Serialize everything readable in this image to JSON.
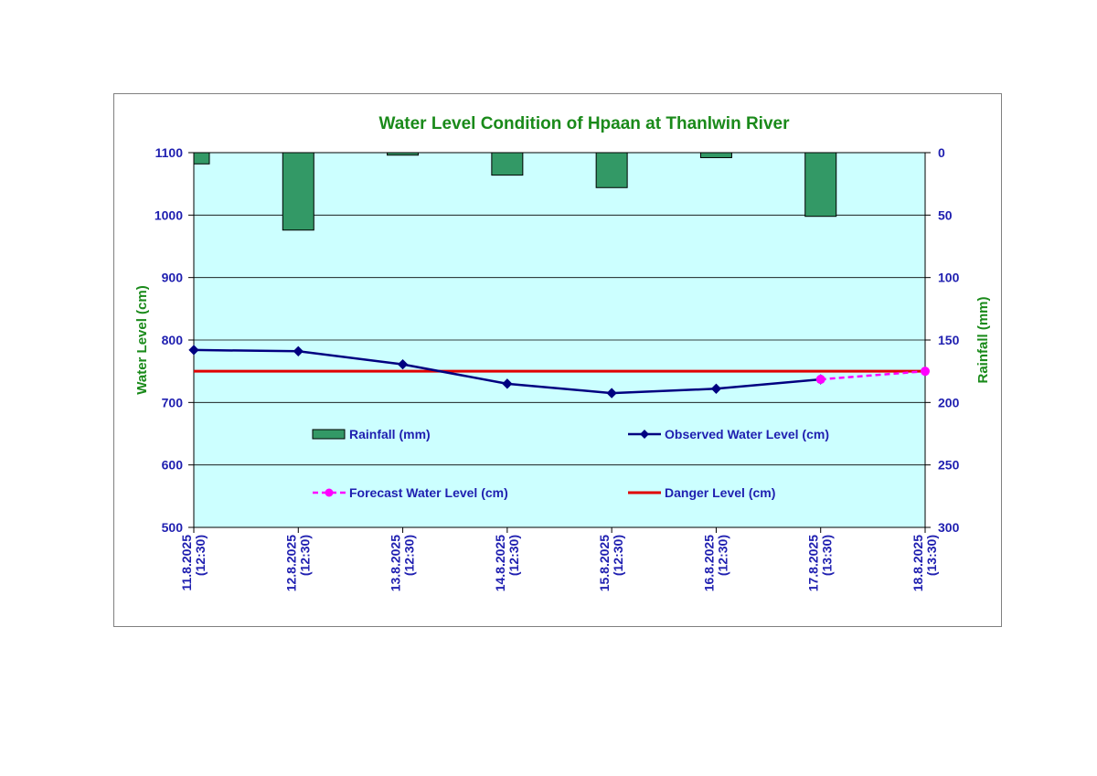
{
  "chart_data": {
    "type": "bar+line",
    "title": "Water Level Condition of Hpaan at Thanlwin River",
    "y_left": {
      "label": "Water Level (cm)",
      "range": [
        500,
        1100
      ],
      "ticks": [
        500,
        600,
        700,
        800,
        900,
        1000,
        1100
      ]
    },
    "y_right": {
      "label": "Rainfall (mm)",
      "range": [
        0,
        300
      ],
      "reversed": true,
      "ticks": [
        0,
        50,
        100,
        150,
        200,
        250,
        300
      ]
    },
    "categories": [
      [
        "11.8.2025",
        "(12:30)"
      ],
      [
        "12.8.2025",
        "(12:30)"
      ],
      [
        "13.8.2025",
        "(12:30)"
      ],
      [
        "14.8.2025",
        "(12:30)"
      ],
      [
        "15.8.2025",
        "(12:30)"
      ],
      [
        "16.8.2025",
        "(12:30)"
      ],
      [
        "17.8.2025",
        "(13:30)"
      ],
      [
        "18.8.2025",
        "(13:30)"
      ]
    ],
    "series": [
      {
        "name": "Rainfall (mm)",
        "kind": "bar",
        "axis": "right",
        "color": "#339966",
        "values": [
          9,
          62,
          2,
          18,
          28,
          4,
          51,
          null
        ]
      },
      {
        "name": "Observed Water Level (cm)",
        "kind": "line",
        "axis": "left",
        "color": "#000080",
        "values": [
          784,
          782,
          761,
          730,
          715,
          722,
          737,
          null
        ]
      },
      {
        "name": "Forecast Water Level (cm)",
        "kind": "dashed-line",
        "axis": "left",
        "color": "#ff00ff",
        "values": [
          null,
          null,
          null,
          null,
          null,
          null,
          737,
          750
        ]
      },
      {
        "name": "Danger Level (cm)",
        "kind": "line",
        "axis": "left",
        "color": "#e00000",
        "values": [
          750,
          750,
          750,
          750,
          750,
          750,
          750,
          750
        ]
      }
    ],
    "grid": true,
    "plot_background": "#ccffff",
    "legend_position": "inside-bottom"
  }
}
